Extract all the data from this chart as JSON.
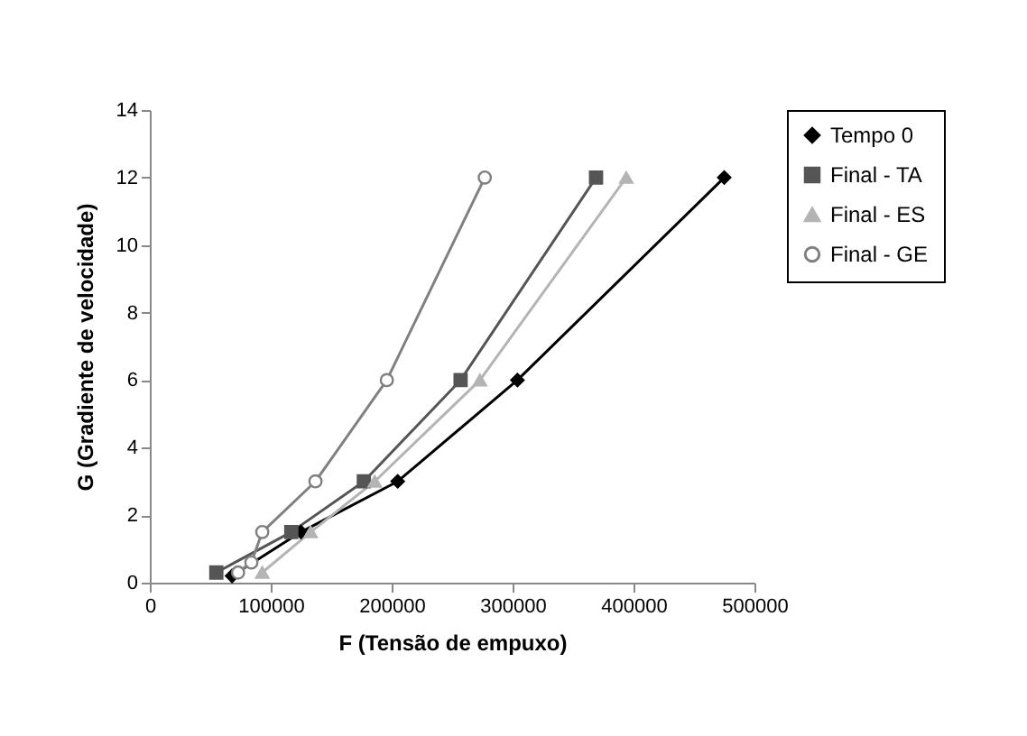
{
  "chart_data": {
    "type": "line",
    "xlabel": "F (Tensão de empuxo)",
    "ylabel": "G (Gradiente de velocidade)",
    "xlim": [
      0,
      500000
    ],
    "xticks": [
      0,
      100000,
      200000,
      300000,
      400000,
      500000
    ],
    "ylim": [
      0,
      14
    ],
    "yticks": [
      0,
      2,
      4,
      6,
      8,
      10,
      12,
      14
    ],
    "grid": false,
    "legend": "right",
    "series": [
      {
        "name": "Tempo 0",
        "color": "#000000",
        "marker": "diamond",
        "x": [
          68000,
          125000,
          205000,
          304000,
          475000
        ],
        "values": [
          0.2,
          1.5,
          3,
          6,
          12
        ]
      },
      {
        "name": "Final - TA",
        "color": "#555555",
        "marker": "square",
        "x": [
          55000,
          117000,
          177000,
          257000,
          369000
        ],
        "values": [
          0.3,
          1.5,
          3,
          6,
          12
        ]
      },
      {
        "name": "Final - ES",
        "color": "#b4b4b4",
        "marker": "triangle",
        "x": [
          93000,
          133000,
          186000,
          273000,
          394000
        ],
        "values": [
          0.3,
          1.5,
          3,
          6,
          12
        ]
      },
      {
        "name": "Final - GE",
        "color": "#808080",
        "marker": "circle",
        "x": [
          73000,
          84000,
          93000,
          137000,
          196000,
          277000
        ],
        "values": [
          0.3,
          0.6,
          1.5,
          3,
          6,
          12
        ]
      }
    ]
  }
}
